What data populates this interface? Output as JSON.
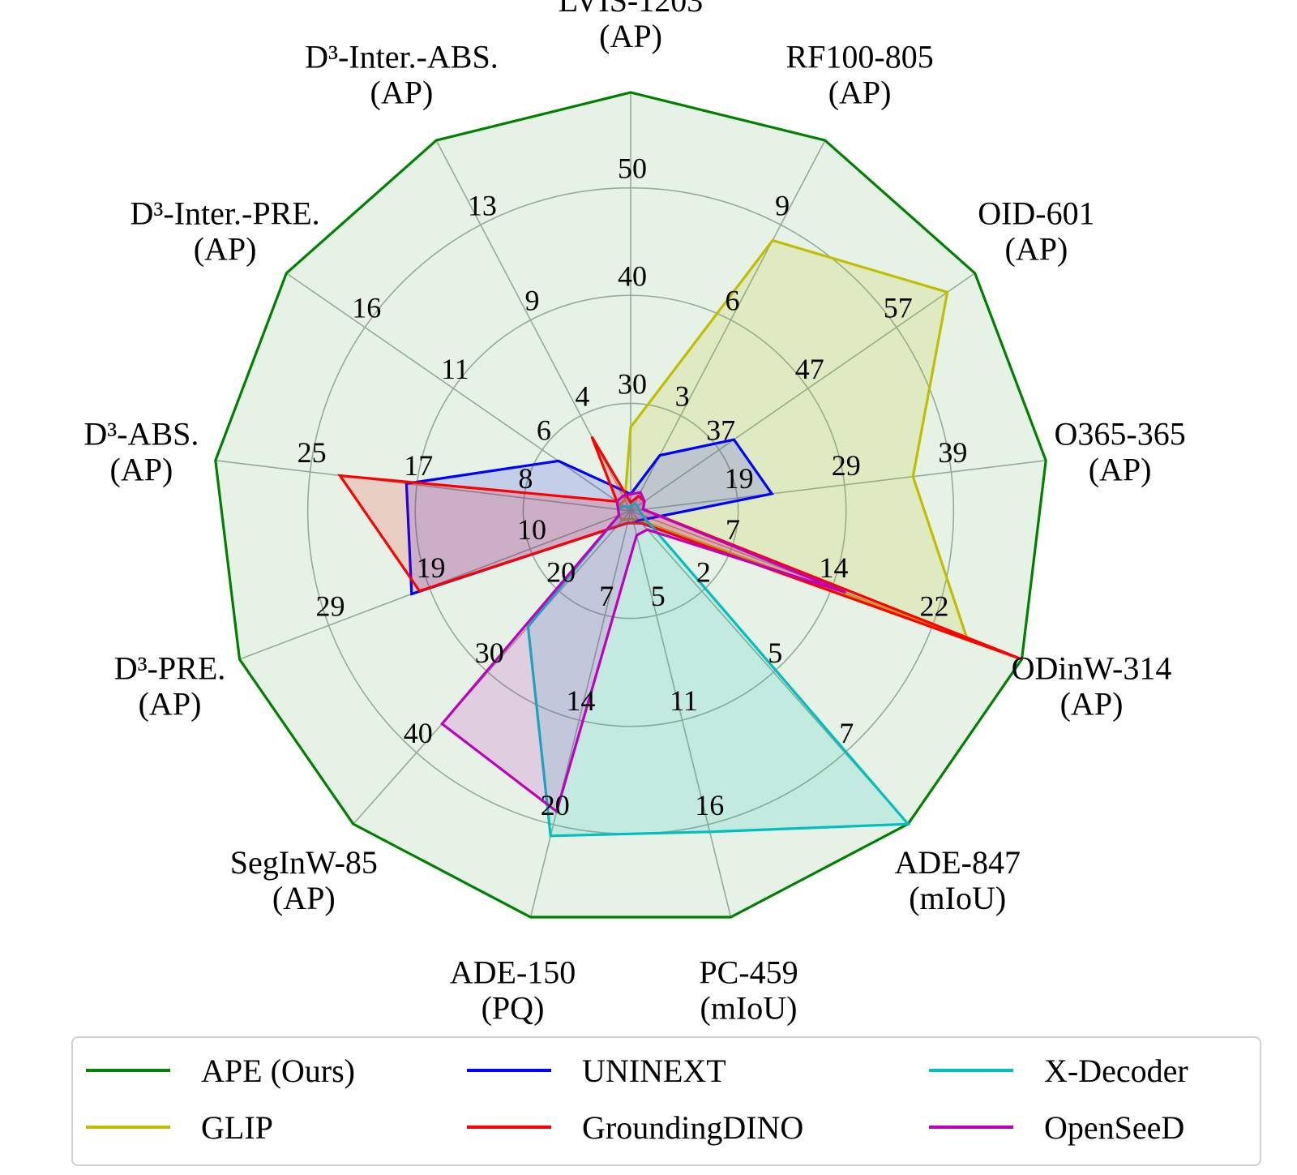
{
  "chart_data": {
    "type": "radar",
    "title": "",
    "axes": [
      {
        "name": "LVIS-1203",
        "unit": "(AP)",
        "ticks": [
          "30",
          "40",
          "50"
        ]
      },
      {
        "name": "RF100-805",
        "unit": "(AP)",
        "ticks": [
          "3",
          "6",
          "9"
        ]
      },
      {
        "name": "OID-601",
        "unit": "(AP)",
        "ticks": [
          "37",
          "47",
          "57"
        ]
      },
      {
        "name": "O365-365",
        "unit": "(AP)",
        "ticks": [
          "19",
          "29",
          "39"
        ]
      },
      {
        "name": "ODinW-314",
        "unit": "(AP)",
        "ticks": [
          "7",
          "14",
          "22"
        ]
      },
      {
        "name": "ADE-847",
        "unit": "(mIoU)",
        "ticks": [
          "2",
          "5",
          "7"
        ]
      },
      {
        "name": "PC-459",
        "unit": "(mIoU)",
        "ticks": [
          "5",
          "11",
          "16"
        ]
      },
      {
        "name": "ADE-150",
        "unit": "(PQ)",
        "ticks": [
          "7",
          "14",
          "20"
        ]
      },
      {
        "name": "SegInW-85",
        "unit": "(AP)",
        "ticks": [
          "20",
          "30",
          "40"
        ]
      },
      {
        "name": "D³-PRE.",
        "unit": "(AP)",
        "ticks": [
          "10",
          "19",
          "29"
        ]
      },
      {
        "name": "D³-ABS.",
        "unit": "(AP)",
        "ticks": [
          "8",
          "17",
          "25"
        ]
      },
      {
        "name": "D³-Inter.-PRE.",
        "unit": "(AP)",
        "ticks": [
          "6",
          "11",
          "16"
        ]
      },
      {
        "name": "D³-Inter.-ABS.",
        "unit": "(AP)",
        "ticks": [
          "4",
          "9",
          "13"
        ]
      }
    ],
    "normalized": true,
    "grid": true,
    "legend_position": "bottom",
    "series": [
      {
        "name": "APE (Ours)",
        "color": "#008000",
        "fill": true,
        "values": [
          1,
          1,
          1,
          1,
          1,
          1,
          1,
          1,
          1,
          1,
          1,
          1,
          1
        ]
      },
      {
        "name": "GLIP",
        "color": "#bfbf00",
        "fill": true,
        "values": [
          0.2,
          0.73,
          0.92,
          0.68,
          0.86,
          0.03,
          0.02,
          0.02,
          0.03,
          0.03,
          0.03,
          0.03,
          0.03
        ]
      },
      {
        "name": "UNINEXT",
        "color": "#0000ff",
        "fill": true,
        "values": [
          0.04,
          0.15,
          0.3,
          0.34,
          0.05,
          0.03,
          0.03,
          0.03,
          0.05,
          0.56,
          0.54,
          0.21,
          0.06
        ]
      },
      {
        "name": "GroundingDINO",
        "color": "#ff0000",
        "fill": true,
        "values": [
          0.02,
          0.04,
          0.04,
          0.03,
          1.0,
          0.04,
          0.03,
          0.03,
          0.05,
          0.54,
          0.7,
          0.04,
          0.2
        ]
      },
      {
        "name": "X-Decoder",
        "color": "#00bfbf",
        "fill": true,
        "values": [
          0.01,
          0.02,
          0.02,
          0.02,
          0.03,
          1.0,
          0.79,
          0.8,
          0.37,
          0.03,
          0.03,
          0.02,
          0.01
        ]
      },
      {
        "name": "OpenSeeD",
        "color": "#bf00bf",
        "fill": true,
        "values": [
          0.04,
          0.05,
          0.04,
          0.03,
          0.55,
          0.06,
          0.06,
          0.74,
          0.68,
          0.03,
          0.03,
          0.04,
          0.04
        ]
      }
    ]
  }
}
